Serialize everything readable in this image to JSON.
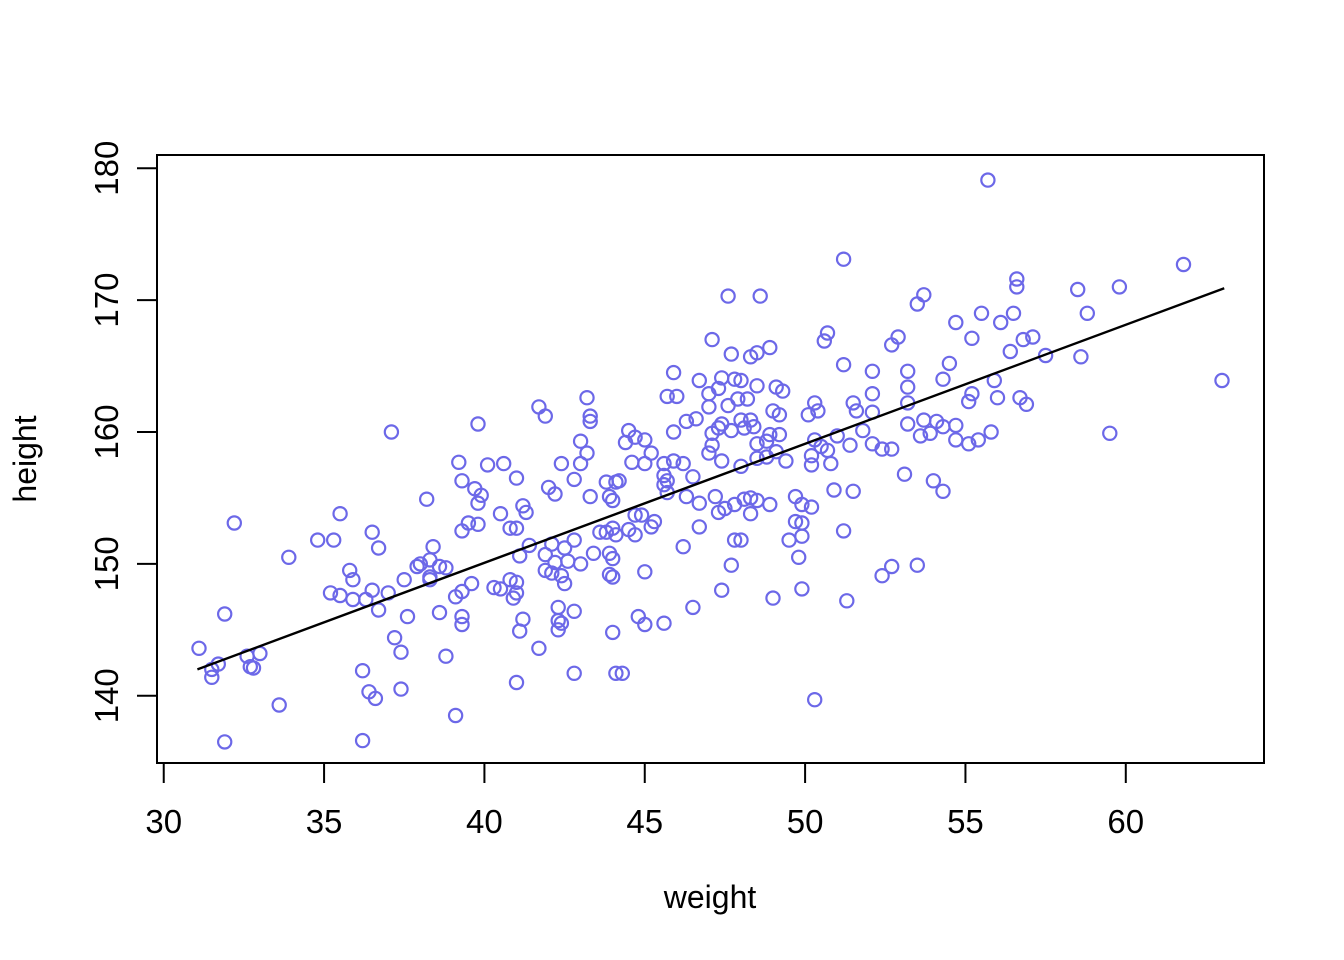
{
  "figure": {
    "background": "#ffffff",
    "axis_color": "#000000"
  },
  "chart_data": {
    "type": "scatter",
    "title": "",
    "xlabel": "weight",
    "ylabel": "height",
    "x_ticks": [
      30,
      35,
      40,
      45,
      50,
      55,
      60
    ],
    "y_ticks": [
      140,
      150,
      160,
      170,
      180
    ],
    "xlim": [
      29.79,
      64.31
    ],
    "ylim": [
      134.9,
      181.0
    ],
    "grid": false,
    "legend": "none",
    "point_color": "#6C68E8",
    "line_color": "#000000",
    "regression_line": {
      "x1": 31.05,
      "y1": 142.0,
      "x2": 63.07,
      "y2": 170.9
    },
    "points": [
      [
        37.1,
        160.0
      ],
      [
        39.8,
        160.6
      ],
      [
        41.7,
        161.9
      ],
      [
        41.9,
        161.2
      ],
      [
        43.2,
        162.6
      ],
      [
        43.3,
        161.2
      ],
      [
        43.3,
        160.8
      ],
      [
        43.0,
        159.3
      ],
      [
        43.2,
        158.4
      ],
      [
        44.5,
        160.1
      ],
      [
        44.7,
        159.6
      ],
      [
        45.0,
        159.4
      ],
      [
        44.4,
        159.2
      ],
      [
        45.2,
        158.4
      ],
      [
        45.9,
        164.5
      ],
      [
        45.7,
        162.7
      ],
      [
        46.0,
        162.7
      ],
      [
        45.9,
        160.0
      ],
      [
        46.3,
        160.8
      ],
      [
        46.6,
        161.0
      ],
      [
        46.7,
        163.9
      ],
      [
        55.7,
        179.1
      ],
      [
        51.2,
        173.1
      ],
      [
        47.6,
        170.3
      ],
      [
        48.6,
        170.3
      ],
      [
        53.7,
        170.4
      ],
      [
        53.5,
        169.7
      ],
      [
        54.7,
        168.3
      ],
      [
        55.5,
        169.0
      ],
      [
        50.7,
        167.5
      ],
      [
        50.6,
        166.9
      ],
      [
        55.2,
        167.1
      ],
      [
        52.9,
        167.2
      ],
      [
        52.7,
        166.6
      ],
      [
        47.7,
        165.9
      ],
      [
        48.3,
        165.7
      ],
      [
        48.5,
        166.0
      ],
      [
        48.9,
        166.4
      ],
      [
        47.1,
        167.0
      ],
      [
        51.2,
        165.1
      ],
      [
        54.5,
        165.2
      ],
      [
        54.3,
        164.0
      ],
      [
        52.1,
        164.6
      ],
      [
        53.2,
        164.6
      ],
      [
        53.2,
        163.4
      ],
      [
        47.4,
        164.1
      ],
      [
        47.8,
        164.0
      ],
      [
        48.0,
        163.9
      ],
      [
        47.3,
        163.3
      ],
      [
        47.0,
        162.9
      ],
      [
        48.5,
        163.5
      ],
      [
        49.1,
        163.4
      ],
      [
        49.3,
        163.1
      ],
      [
        47.9,
        162.5
      ],
      [
        48.2,
        162.5
      ],
      [
        47.6,
        162.0
      ],
      [
        47.0,
        161.9
      ],
      [
        50.3,
        162.2
      ],
      [
        50.4,
        161.6
      ],
      [
        50.1,
        161.3
      ],
      [
        51.5,
        162.2
      ],
      [
        51.6,
        161.6
      ],
      [
        52.1,
        162.9
      ],
      [
        52.1,
        161.5
      ],
      [
        53.2,
        162.2
      ],
      [
        53.2,
        160.6
      ],
      [
        53.7,
        160.9
      ],
      [
        54.1,
        160.8
      ],
      [
        54.3,
        160.4
      ],
      [
        54.7,
        160.5
      ],
      [
        55.1,
        162.3
      ],
      [
        55.2,
        162.9
      ],
      [
        55.9,
        163.9
      ],
      [
        47.1,
        159.0
      ],
      [
        47.4,
        160.6
      ],
      [
        48.0,
        160.9
      ],
      [
        48.3,
        160.9
      ],
      [
        48.4,
        160.4
      ],
      [
        48.1,
        160.3
      ],
      [
        47.7,
        160.1
      ],
      [
        47.3,
        160.3
      ],
      [
        47.1,
        159.9
      ],
      [
        49.0,
        161.6
      ],
      [
        49.2,
        161.3
      ],
      [
        48.9,
        159.8
      ],
      [
        49.2,
        159.8
      ],
      [
        48.8,
        159.3
      ],
      [
        48.5,
        159.1
      ],
      [
        49.1,
        158.5
      ],
      [
        48.8,
        158.1
      ],
      [
        50.3,
        159.4
      ],
      [
        50.5,
        158.9
      ],
      [
        50.7,
        158.6
      ],
      [
        50.2,
        158.2
      ],
      [
        51.0,
        159.7
      ],
      [
        51.4,
        159.0
      ],
      [
        51.8,
        160.1
      ],
      [
        52.1,
        159.1
      ],
      [
        52.4,
        158.7
      ],
      [
        52.7,
        158.7
      ],
      [
        53.6,
        159.7
      ],
      [
        53.9,
        159.9
      ],
      [
        54.7,
        159.4
      ],
      [
        55.1,
        159.1
      ],
      [
        55.4,
        159.4
      ],
      [
        55.8,
        160.0
      ],
      [
        61.8,
        172.7
      ],
      [
        56.6,
        171.6
      ],
      [
        56.6,
        171.0
      ],
      [
        58.5,
        170.8
      ],
      [
        59.8,
        171.0
      ],
      [
        58.8,
        169.0
      ],
      [
        56.5,
        169.0
      ],
      [
        56.1,
        168.3
      ],
      [
        56.8,
        167.0
      ],
      [
        57.1,
        167.2
      ],
      [
        56.4,
        166.1
      ],
      [
        57.5,
        165.8
      ],
      [
        58.6,
        165.7
      ],
      [
        56.0,
        162.6
      ],
      [
        56.7,
        162.6
      ],
      [
        56.9,
        162.1
      ],
      [
        59.5,
        159.9
      ],
      [
        63.0,
        163.9
      ],
      [
        32.2,
        153.1
      ],
      [
        35.5,
        153.8
      ],
      [
        36.5,
        152.4
      ],
      [
        34.8,
        151.8
      ],
      [
        35.3,
        151.8
      ],
      [
        36.7,
        151.2
      ],
      [
        33.9,
        150.5
      ],
      [
        35.8,
        149.5
      ],
      [
        35.9,
        148.8
      ],
      [
        35.2,
        147.8
      ],
      [
        35.5,
        147.6
      ],
      [
        35.9,
        147.3
      ],
      [
        36.3,
        147.3
      ],
      [
        36.5,
        148.0
      ],
      [
        36.7,
        146.5
      ],
      [
        37.0,
        147.8
      ],
      [
        38.0,
        150.0
      ],
      [
        37.9,
        149.8
      ],
      [
        38.3,
        148.8
      ],
      [
        37.5,
        148.8
      ],
      [
        37.6,
        146.0
      ],
      [
        37.2,
        144.4
      ],
      [
        37.4,
        143.3
      ],
      [
        31.9,
        146.2
      ],
      [
        31.1,
        143.6
      ],
      [
        31.5,
        142.0
      ],
      [
        31.7,
        142.4
      ],
      [
        31.5,
        141.4
      ],
      [
        32.6,
        143.0
      ],
      [
        32.7,
        142.2
      ],
      [
        32.8,
        142.1
      ],
      [
        33.0,
        143.2
      ],
      [
        33.6,
        139.3
      ],
      [
        31.9,
        136.5
      ],
      [
        36.2,
        136.6
      ],
      [
        36.2,
        141.9
      ],
      [
        36.4,
        140.3
      ],
      [
        36.6,
        139.8
      ],
      [
        37.4,
        140.5
      ],
      [
        38.2,
        154.9
      ],
      [
        39.2,
        157.7
      ],
      [
        40.1,
        157.5
      ],
      [
        40.6,
        157.6
      ],
      [
        42.4,
        157.6
      ],
      [
        43.0,
        157.6
      ],
      [
        44.6,
        157.7
      ],
      [
        45.0,
        157.6
      ],
      [
        45.6,
        157.6
      ],
      [
        45.9,
        157.8
      ],
      [
        46.2,
        157.6
      ],
      [
        45.6,
        156.7
      ],
      [
        45.7,
        156.3
      ],
      [
        45.6,
        156.0
      ],
      [
        45.7,
        155.4
      ],
      [
        43.8,
        156.2
      ],
      [
        44.1,
        156.2
      ],
      [
        44.2,
        156.3
      ],
      [
        39.3,
        156.3
      ],
      [
        39.7,
        155.7
      ],
      [
        39.9,
        155.2
      ],
      [
        41.0,
        156.5
      ],
      [
        42.0,
        155.8
      ],
      [
        42.2,
        155.3
      ],
      [
        42.8,
        156.4
      ],
      [
        43.3,
        155.1
      ],
      [
        43.9,
        155.1
      ],
      [
        44.0,
        154.8
      ],
      [
        46.5,
        156.6
      ],
      [
        46.3,
        155.1
      ],
      [
        46.7,
        154.6
      ],
      [
        39.8,
        154.6
      ],
      [
        40.5,
        153.8
      ],
      [
        41.2,
        154.4
      ],
      [
        41.3,
        153.9
      ],
      [
        39.5,
        153.1
      ],
      [
        39.8,
        153.0
      ],
      [
        39.3,
        152.5
      ],
      [
        40.8,
        152.7
      ],
      [
        41.0,
        152.7
      ],
      [
        41.4,
        151.4
      ],
      [
        41.1,
        150.6
      ],
      [
        42.1,
        151.5
      ],
      [
        42.5,
        151.2
      ],
      [
        41.9,
        150.7
      ],
      [
        42.2,
        150.1
      ],
      [
        42.6,
        150.2
      ],
      [
        41.9,
        149.5
      ],
      [
        42.1,
        149.3
      ],
      [
        42.4,
        149.1
      ],
      [
        42.5,
        148.5
      ],
      [
        42.8,
        151.8
      ],
      [
        43.0,
        150.0
      ],
      [
        43.4,
        150.8
      ],
      [
        43.6,
        152.4
      ],
      [
        43.8,
        152.4
      ],
      [
        44.0,
        152.7
      ],
      [
        44.1,
        152.2
      ],
      [
        43.9,
        150.8
      ],
      [
        44.0,
        150.4
      ],
      [
        43.9,
        149.2
      ],
      [
        44.0,
        149.0
      ],
      [
        44.5,
        152.6
      ],
      [
        44.7,
        153.7
      ],
      [
        44.9,
        153.7
      ],
      [
        44.7,
        152.2
      ],
      [
        45.2,
        152.8
      ],
      [
        45.3,
        153.2
      ],
      [
        45.0,
        149.4
      ],
      [
        46.2,
        151.3
      ],
      [
        46.7,
        152.8
      ],
      [
        38.4,
        151.3
      ],
      [
        38.3,
        150.3
      ],
      [
        38.3,
        149.0
      ],
      [
        38.6,
        149.8
      ],
      [
        38.8,
        149.7
      ],
      [
        39.6,
        148.5
      ],
      [
        39.3,
        147.9
      ],
      [
        39.1,
        147.5
      ],
      [
        40.3,
        148.2
      ],
      [
        40.5,
        148.1
      ],
      [
        40.8,
        148.8
      ],
      [
        41.0,
        148.6
      ],
      [
        41.0,
        147.8
      ],
      [
        40.9,
        147.4
      ],
      [
        38.6,
        146.3
      ],
      [
        39.3,
        146.0
      ],
      [
        39.3,
        145.4
      ],
      [
        41.2,
        145.8
      ],
      [
        41.1,
        144.9
      ],
      [
        42.3,
        146.7
      ],
      [
        42.8,
        146.4
      ],
      [
        42.3,
        145.7
      ],
      [
        42.4,
        145.5
      ],
      [
        42.3,
        145.0
      ],
      [
        41.7,
        143.6
      ],
      [
        42.8,
        141.7
      ],
      [
        44.1,
        141.7
      ],
      [
        44.3,
        141.7
      ],
      [
        44.0,
        144.8
      ],
      [
        44.8,
        146.0
      ],
      [
        45.0,
        145.4
      ],
      [
        45.6,
        145.5
      ],
      [
        46.5,
        146.7
      ],
      [
        41.0,
        141.0
      ],
      [
        39.1,
        138.5
      ],
      [
        38.8,
        143.0
      ],
      [
        47.2,
        155.1
      ],
      [
        47.5,
        154.2
      ],
      [
        47.8,
        154.5
      ],
      [
        48.1,
        154.9
      ],
      [
        48.3,
        155.0
      ],
      [
        48.5,
        154.8
      ],
      [
        48.9,
        154.5
      ],
      [
        47.3,
        153.9
      ],
      [
        48.3,
        153.8
      ],
      [
        49.7,
        155.1
      ],
      [
        49.9,
        154.5
      ],
      [
        50.2,
        154.3
      ],
      [
        49.7,
        153.2
      ],
      [
        49.9,
        153.1
      ],
      [
        49.5,
        151.8
      ],
      [
        49.9,
        152.1
      ],
      [
        49.8,
        150.5
      ],
      [
        47.8,
        151.8
      ],
      [
        48.0,
        151.8
      ],
      [
        47.7,
        149.9
      ],
      [
        47.4,
        148.0
      ],
      [
        49.0,
        147.4
      ],
      [
        49.9,
        148.1
      ],
      [
        51.2,
        152.5
      ],
      [
        51.3,
        147.2
      ],
      [
        52.4,
        149.1
      ],
      [
        52.7,
        149.8
      ],
      [
        53.5,
        149.9
      ],
      [
        50.9,
        155.6
      ],
      [
        51.5,
        155.5
      ],
      [
        53.1,
        156.8
      ],
      [
        54.0,
        156.3
      ],
      [
        54.3,
        155.5
      ],
      [
        50.3,
        139.7
      ],
      [
        47.4,
        157.8
      ],
      [
        48.0,
        157.4
      ],
      [
        48.5,
        158.0
      ],
      [
        49.4,
        157.8
      ],
      [
        50.2,
        157.5
      ],
      [
        50.8,
        157.6
      ],
      [
        47.0,
        158.4
      ]
    ]
  }
}
